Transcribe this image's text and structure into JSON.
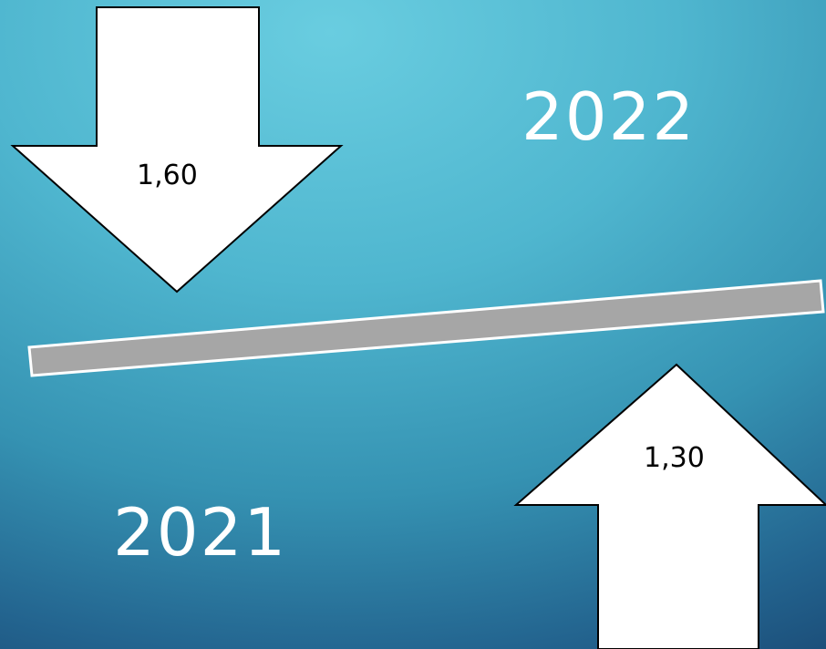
{
  "labels": {
    "year_top": "2022",
    "year_bottom": "2021",
    "value_down_arrow": "1,60",
    "value_up_arrow": "1,30"
  },
  "colors": {
    "background_light": "#69cde0",
    "background_dark": "#1c4f7a",
    "arrow_fill": "#ffffff",
    "arrow_stroke": "#000000",
    "beam_fill": "#a6a6a6",
    "beam_stroke": "#ffffff",
    "text_light": "#ffffff",
    "text_dark": "#000000"
  },
  "icons": {
    "down_arrow": "down-arrow-icon",
    "up_arrow": "up-arrow-icon"
  }
}
